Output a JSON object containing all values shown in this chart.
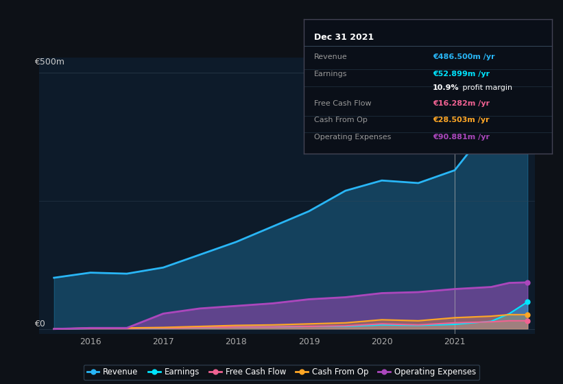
{
  "bg_color": "#0d1117",
  "plot_bg_color": "#0d1b2a",
  "ylabel_top": "€500m",
  "ylabel_zero": "€0",
  "x_years": [
    2015.5,
    2016.0,
    2016.5,
    2017.0,
    2017.5,
    2018.0,
    2018.5,
    2019.0,
    2019.5,
    2020.0,
    2020.5,
    2021.0,
    2021.5,
    2021.75,
    2022.0
  ],
  "revenue": [
    100,
    110,
    108,
    120,
    145,
    170,
    200,
    230,
    270,
    290,
    285,
    310,
    400,
    470,
    486
  ],
  "earnings": [
    0,
    1,
    1,
    2,
    3,
    4,
    4,
    5,
    5,
    8,
    7,
    9,
    15,
    30,
    53
  ],
  "free_cash_flow": [
    0,
    1,
    1,
    2,
    3,
    4,
    4,
    5,
    6,
    10,
    8,
    12,
    14,
    16,
    16
  ],
  "cash_from_op": [
    0,
    2,
    2,
    3,
    5,
    7,
    8,
    10,
    12,
    18,
    16,
    22,
    25,
    28,
    28
  ],
  "op_expenses": [
    0,
    2,
    2,
    30,
    40,
    45,
    50,
    58,
    62,
    70,
    72,
    78,
    82,
    90,
    91
  ],
  "revenue_color": "#29b6f6",
  "earnings_color": "#00e5ff",
  "fcf_color": "#f06292",
  "cfo_color": "#ffa726",
  "opex_color": "#ab47bc",
  "highlight_x": 2021.0,
  "tooltip": {
    "title": "Dec 31 2021",
    "revenue_val": "€486.500m /yr",
    "earnings_val": "€52.899m /yr",
    "margin_pct": "10.9%",
    "margin_txt": " profit margin",
    "fcf_val": "€16.282m /yr",
    "cfo_val": "€28.503m /yr",
    "opex_val": "€90.881m /yr"
  },
  "legend": [
    {
      "label": "Revenue",
      "color": "#29b6f6"
    },
    {
      "label": "Earnings",
      "color": "#00e5ff"
    },
    {
      "label": "Free Cash Flow",
      "color": "#f06292"
    },
    {
      "label": "Cash From Op",
      "color": "#ffa726"
    },
    {
      "label": "Operating Expenses",
      "color": "#ab47bc"
    }
  ],
  "xticks": [
    2016,
    2017,
    2018,
    2019,
    2020,
    2021
  ],
  "ylim": [
    -10,
    530
  ],
  "xlim": [
    2015.3,
    2022.1
  ]
}
